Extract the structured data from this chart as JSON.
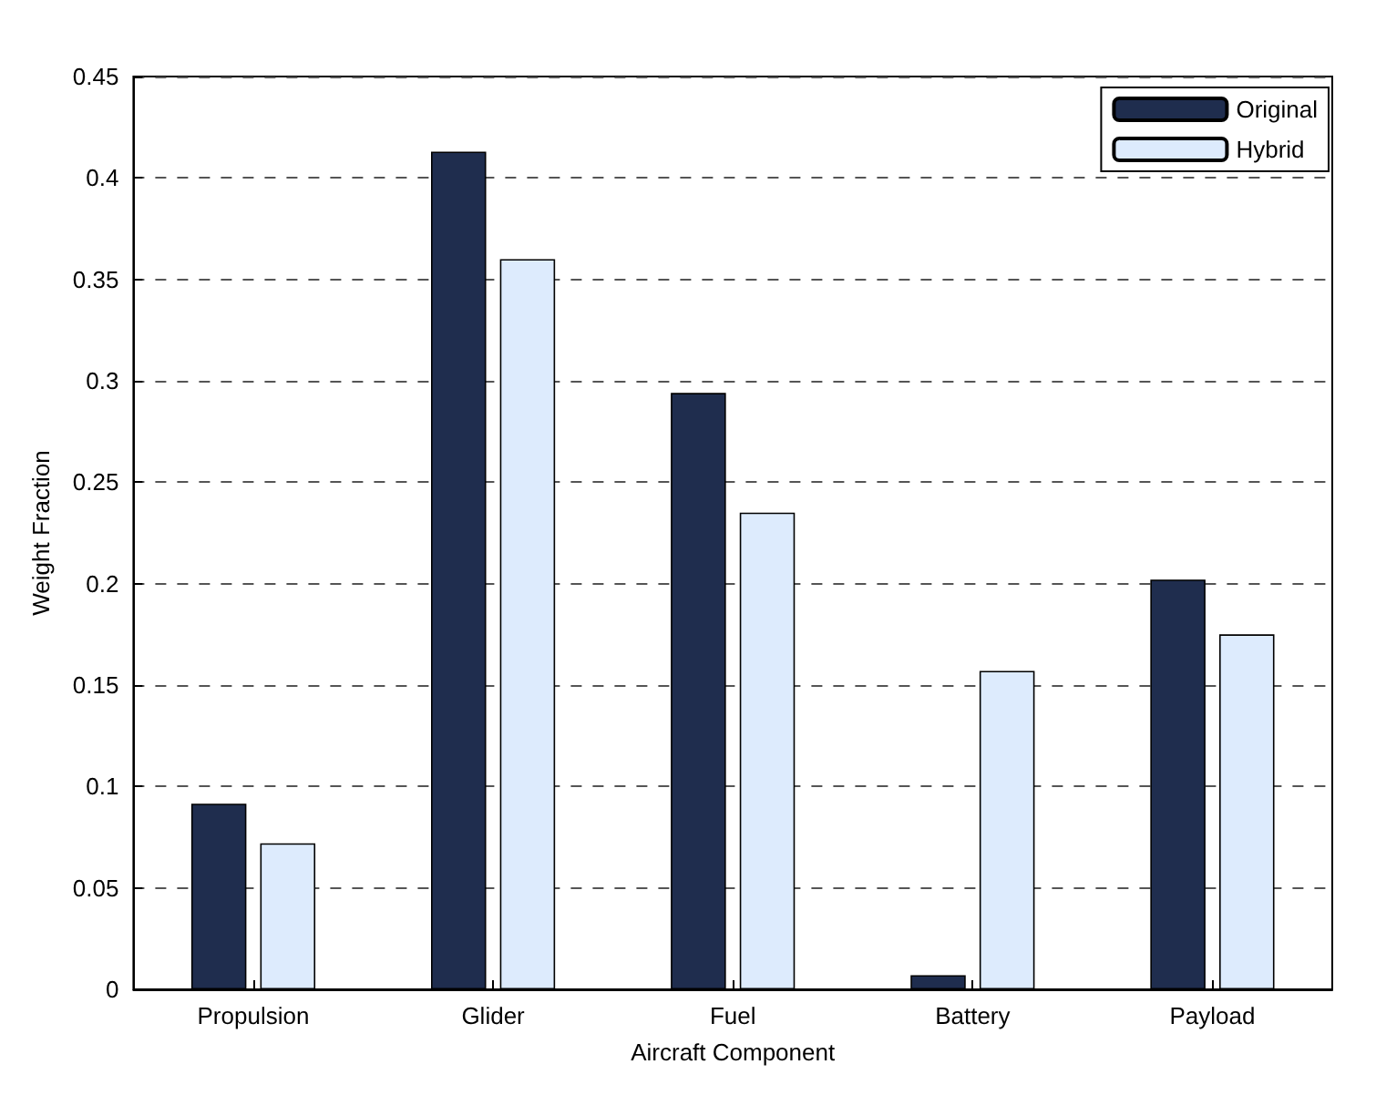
{
  "chart_data": {
    "type": "bar",
    "xlabel": "Aircraft Component",
    "ylabel": "Weight Fraction",
    "categories": [
      "Propulsion",
      "Glider",
      "Fuel",
      "Battery",
      "Payload"
    ],
    "series": [
      {
        "name": "Original",
        "color": "#1f2d4e",
        "values": [
          0.0915,
          0.413,
          0.294,
          0.007,
          0.202
        ]
      },
      {
        "name": "Hybrid",
        "color": "#ddebfd",
        "values": [
          0.072,
          0.36,
          0.235,
          0.157,
          0.175
        ]
      }
    ],
    "ylim": [
      0,
      0.45
    ],
    "yticks": [
      0,
      0.05,
      0.1,
      0.15,
      0.2,
      0.25,
      0.3,
      0.35,
      0.4,
      0.45
    ],
    "grid": "y",
    "legend": "top right"
  }
}
